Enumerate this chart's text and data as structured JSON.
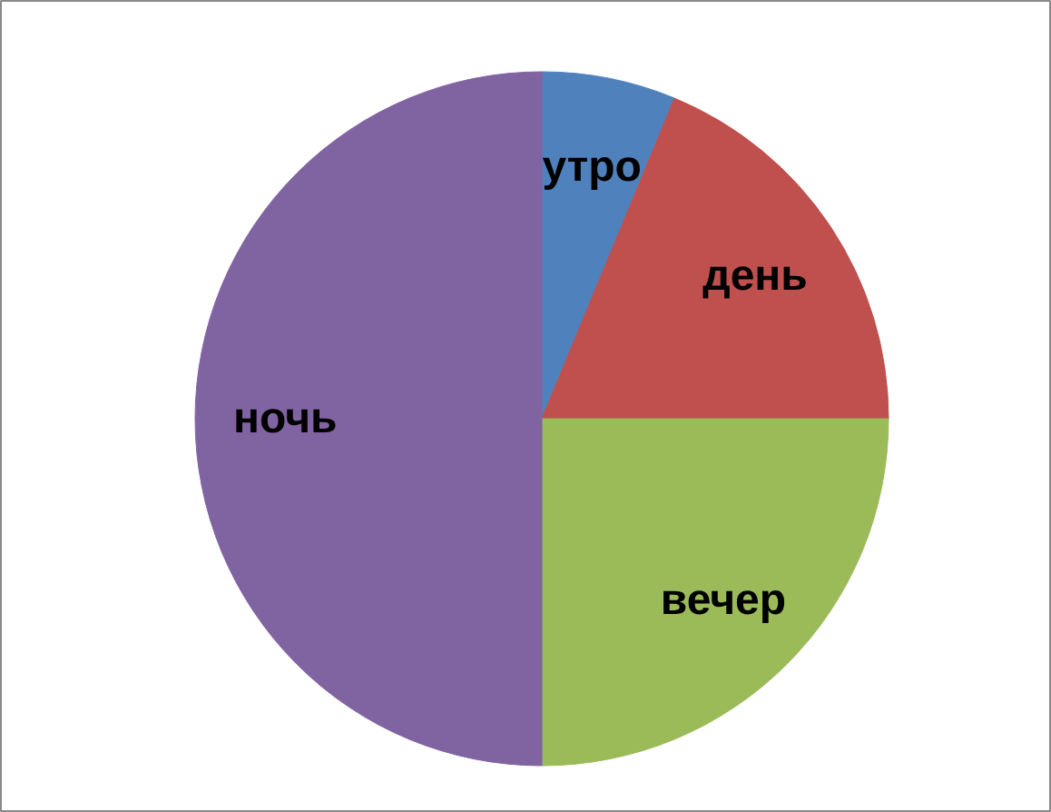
{
  "chart_data": {
    "type": "pie",
    "categories": [
      "утро",
      "день",
      "вечер",
      "ночь"
    ],
    "values": [
      6.25,
      18.75,
      25,
      50
    ],
    "colors": [
      "#4f81bd",
      "#c0504d",
      "#9bbb59",
      "#8064a2"
    ],
    "legend": false
  }
}
